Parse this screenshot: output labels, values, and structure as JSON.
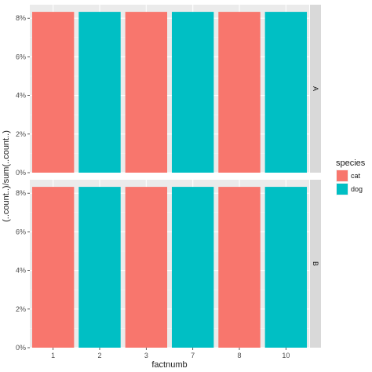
{
  "chart_data": {
    "type": "bar",
    "xlabel": "factnumb",
    "ylabel": "(..count..)/sum(..count..)",
    "categories": [
      "1",
      "2",
      "3",
      "7",
      "8",
      "10"
    ],
    "ylim": [
      0,
      0.087
    ],
    "yticks": [
      0,
      0.02,
      0.04,
      0.06,
      0.08
    ],
    "ytick_labels": [
      "0%",
      "2%",
      "4%",
      "6%",
      "8%"
    ],
    "grid": true,
    "legend_position": "right",
    "legend": {
      "title": "species",
      "entries": [
        {
          "label": "cat",
          "color": "#F8766D"
        },
        {
          "label": "dog",
          "color": "#00BFC4"
        }
      ]
    },
    "panels": [
      {
        "label": "A",
        "bars": [
          {
            "category": "1",
            "value": 0.0833,
            "species": "cat"
          },
          {
            "category": "2",
            "value": 0.0833,
            "species": "dog"
          },
          {
            "category": "3",
            "value": 0.0833,
            "species": "cat"
          },
          {
            "category": "7",
            "value": 0.0833,
            "species": "dog"
          },
          {
            "category": "8",
            "value": 0.0833,
            "species": "cat"
          },
          {
            "category": "10",
            "value": 0.0833,
            "species": "dog"
          }
        ]
      },
      {
        "label": "B",
        "bars": [
          {
            "category": "1",
            "value": 0.0833,
            "species": "cat"
          },
          {
            "category": "2",
            "value": 0.0833,
            "species": "dog"
          },
          {
            "category": "3",
            "value": 0.0833,
            "species": "cat"
          },
          {
            "category": "7",
            "value": 0.0833,
            "species": "dog"
          },
          {
            "category": "8",
            "value": 0.0833,
            "species": "cat"
          },
          {
            "category": "10",
            "value": 0.0833,
            "species": "dog"
          }
        ]
      }
    ],
    "colors": {
      "panel_bg": "#EBEBEB",
      "grid_major": "#FFFFFF",
      "strip_bg": "#D9D9D9"
    }
  }
}
